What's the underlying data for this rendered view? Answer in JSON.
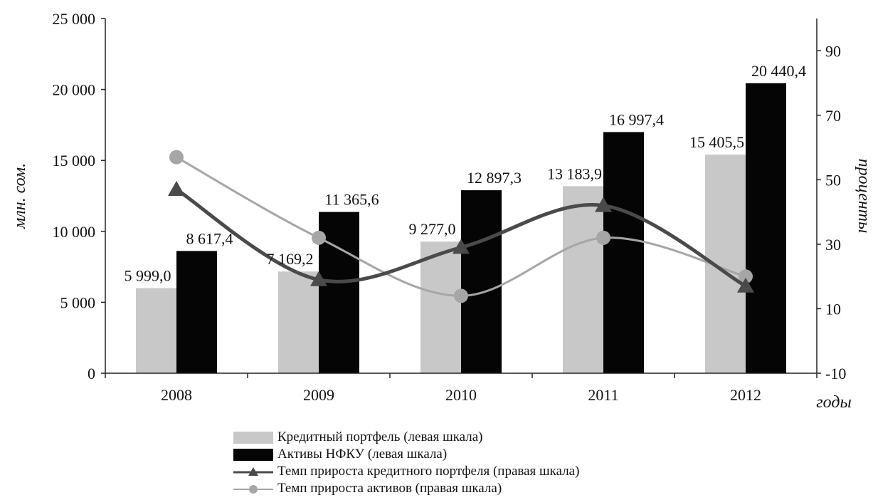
{
  "chart_data": {
    "type": "bar",
    "categories": [
      "2008",
      "2009",
      "2010",
      "2011",
      "2012"
    ],
    "y_left": {
      "label": "млн. сом.",
      "ylim": [
        0,
        25000
      ],
      "ticks": [
        0,
        5000,
        10000,
        15000,
        20000,
        25000
      ],
      "tick_labels": [
        "0",
        "5 000",
        "10 000",
        "15 000",
        "20 000",
        "25 000"
      ]
    },
    "y_right": {
      "label": "проценты",
      "ylim": [
        -10,
        100
      ],
      "ticks": [
        -10,
        10,
        30,
        50,
        70,
        90
      ],
      "tick_labels": [
        "-10",
        "10",
        "30",
        "50",
        "70",
        "90"
      ]
    },
    "x_label": "годы",
    "series": [
      {
        "name": "Кредитный портфель (левая шкала)",
        "type": "bar",
        "axis": "left",
        "color": "#c8c8c8",
        "values": [
          5999.0,
          7169.2,
          9277.0,
          13183.9,
          15405.5
        ],
        "labels": [
          "5 999,0",
          "7 169,2",
          "9 277,0",
          "13 183,9",
          "15 405,5"
        ]
      },
      {
        "name": "Активы НФКУ (левая шкала)",
        "type": "bar",
        "axis": "left",
        "color": "#050505",
        "values": [
          8617.4,
          11365.6,
          12897.3,
          16997.4,
          20440.4
        ],
        "labels": [
          "8 617,4",
          "11 365,6",
          "12 897,3",
          "16 997,4",
          "20 440,4"
        ]
      },
      {
        "name": "Темп прироста кредитного портфеля (правая шкала)",
        "type": "line",
        "axis": "right",
        "marker": "triangle",
        "color": "#4a4a4a",
        "values": [
          47,
          19,
          29,
          42,
          17
        ]
      },
      {
        "name": "Темп прироста активов (правая шкала)",
        "type": "line",
        "axis": "right",
        "marker": "circle",
        "color": "#a6a6a6",
        "values": [
          57,
          32,
          14,
          32,
          20
        ]
      }
    ],
    "legend_position": "bottom",
    "grid": false
  }
}
